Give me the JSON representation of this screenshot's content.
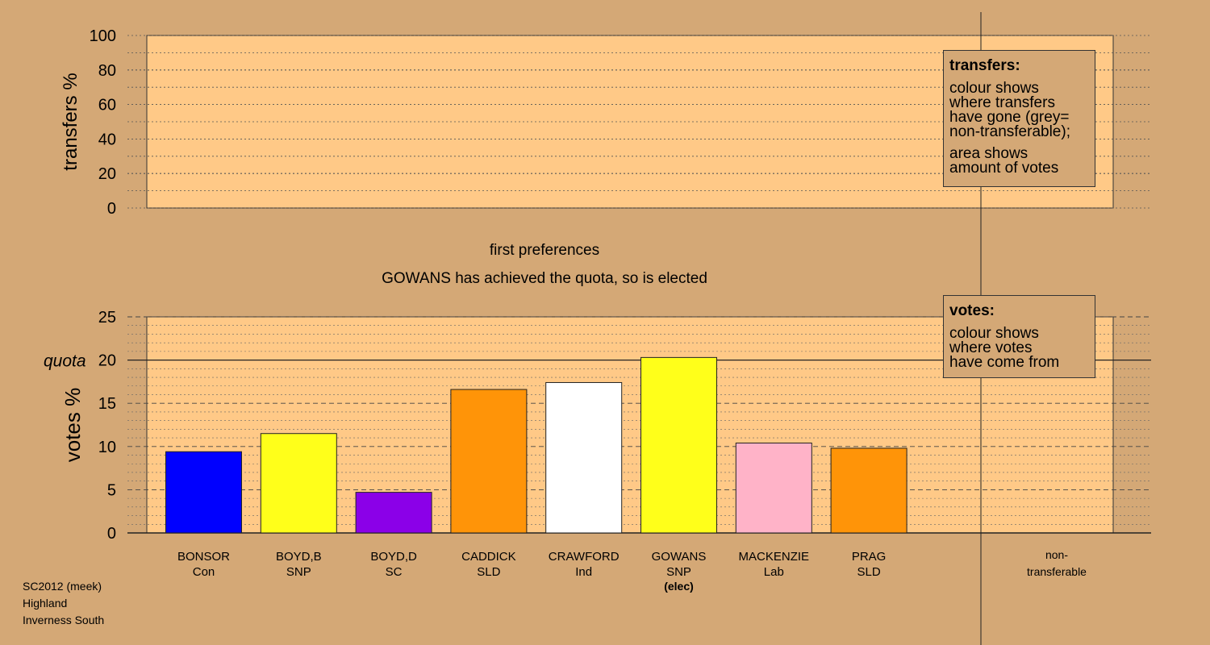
{
  "subtitle": "first preferences",
  "status_message": "GOWANS has achieved the quota, so is elected",
  "transfers_legend": {
    "title": "transfers:",
    "line1": "colour shows",
    "line2": "where transfers",
    "line3": "have gone (grey=",
    "line4": "non-transferable);",
    "line5": "area shows",
    "line6": "amount of votes"
  },
  "votes_legend": {
    "title": "votes:",
    "line1": "colour shows",
    "line2": "where votes",
    "line3": "have come from"
  },
  "footer": {
    "line1": "SC2012 (meek)",
    "line2": "Highland",
    "line3": "Inverness South"
  },
  "colors": {
    "background": "#d4a876",
    "plot_background": "#ffc987"
  },
  "chart_data": [
    {
      "type": "bar",
      "ylabel": "transfers %",
      "ylim": [
        0,
        100
      ],
      "yticks": [
        0,
        20,
        40,
        60,
        80,
        100
      ],
      "categories": [],
      "values": []
    },
    {
      "type": "bar",
      "ylabel": "votes %",
      "ylim": [
        0,
        25
      ],
      "yticks": [
        0,
        5,
        10,
        15,
        20,
        25
      ],
      "quota": 20,
      "quota_label": "quota",
      "categories": [
        "BONSOR",
        "BOYD,B",
        "BOYD,D",
        "CADDICK",
        "CRAWFORD",
        "GOWANS",
        "MACKENZIE",
        "PRAG"
      ],
      "parties": [
        "Con",
        "SNP",
        "SC",
        "SLD",
        "Ind",
        "SNP",
        "Lab",
        "SLD"
      ],
      "notes": [
        "",
        "",
        "",
        "",
        "",
        "(elec)",
        "",
        ""
      ],
      "colors": [
        "#0000ff",
        "#ffff1a",
        "#8b00e8",
        "#ff9408",
        "#ffffff",
        "#ffff1a",
        "#ffb3c8",
        "#ff9408"
      ],
      "values": [
        9.4,
        11.5,
        4.7,
        16.6,
        17.4,
        20.3,
        10.4,
        9.8
      ],
      "extra_category": [
        "non-",
        "transferable"
      ]
    }
  ]
}
